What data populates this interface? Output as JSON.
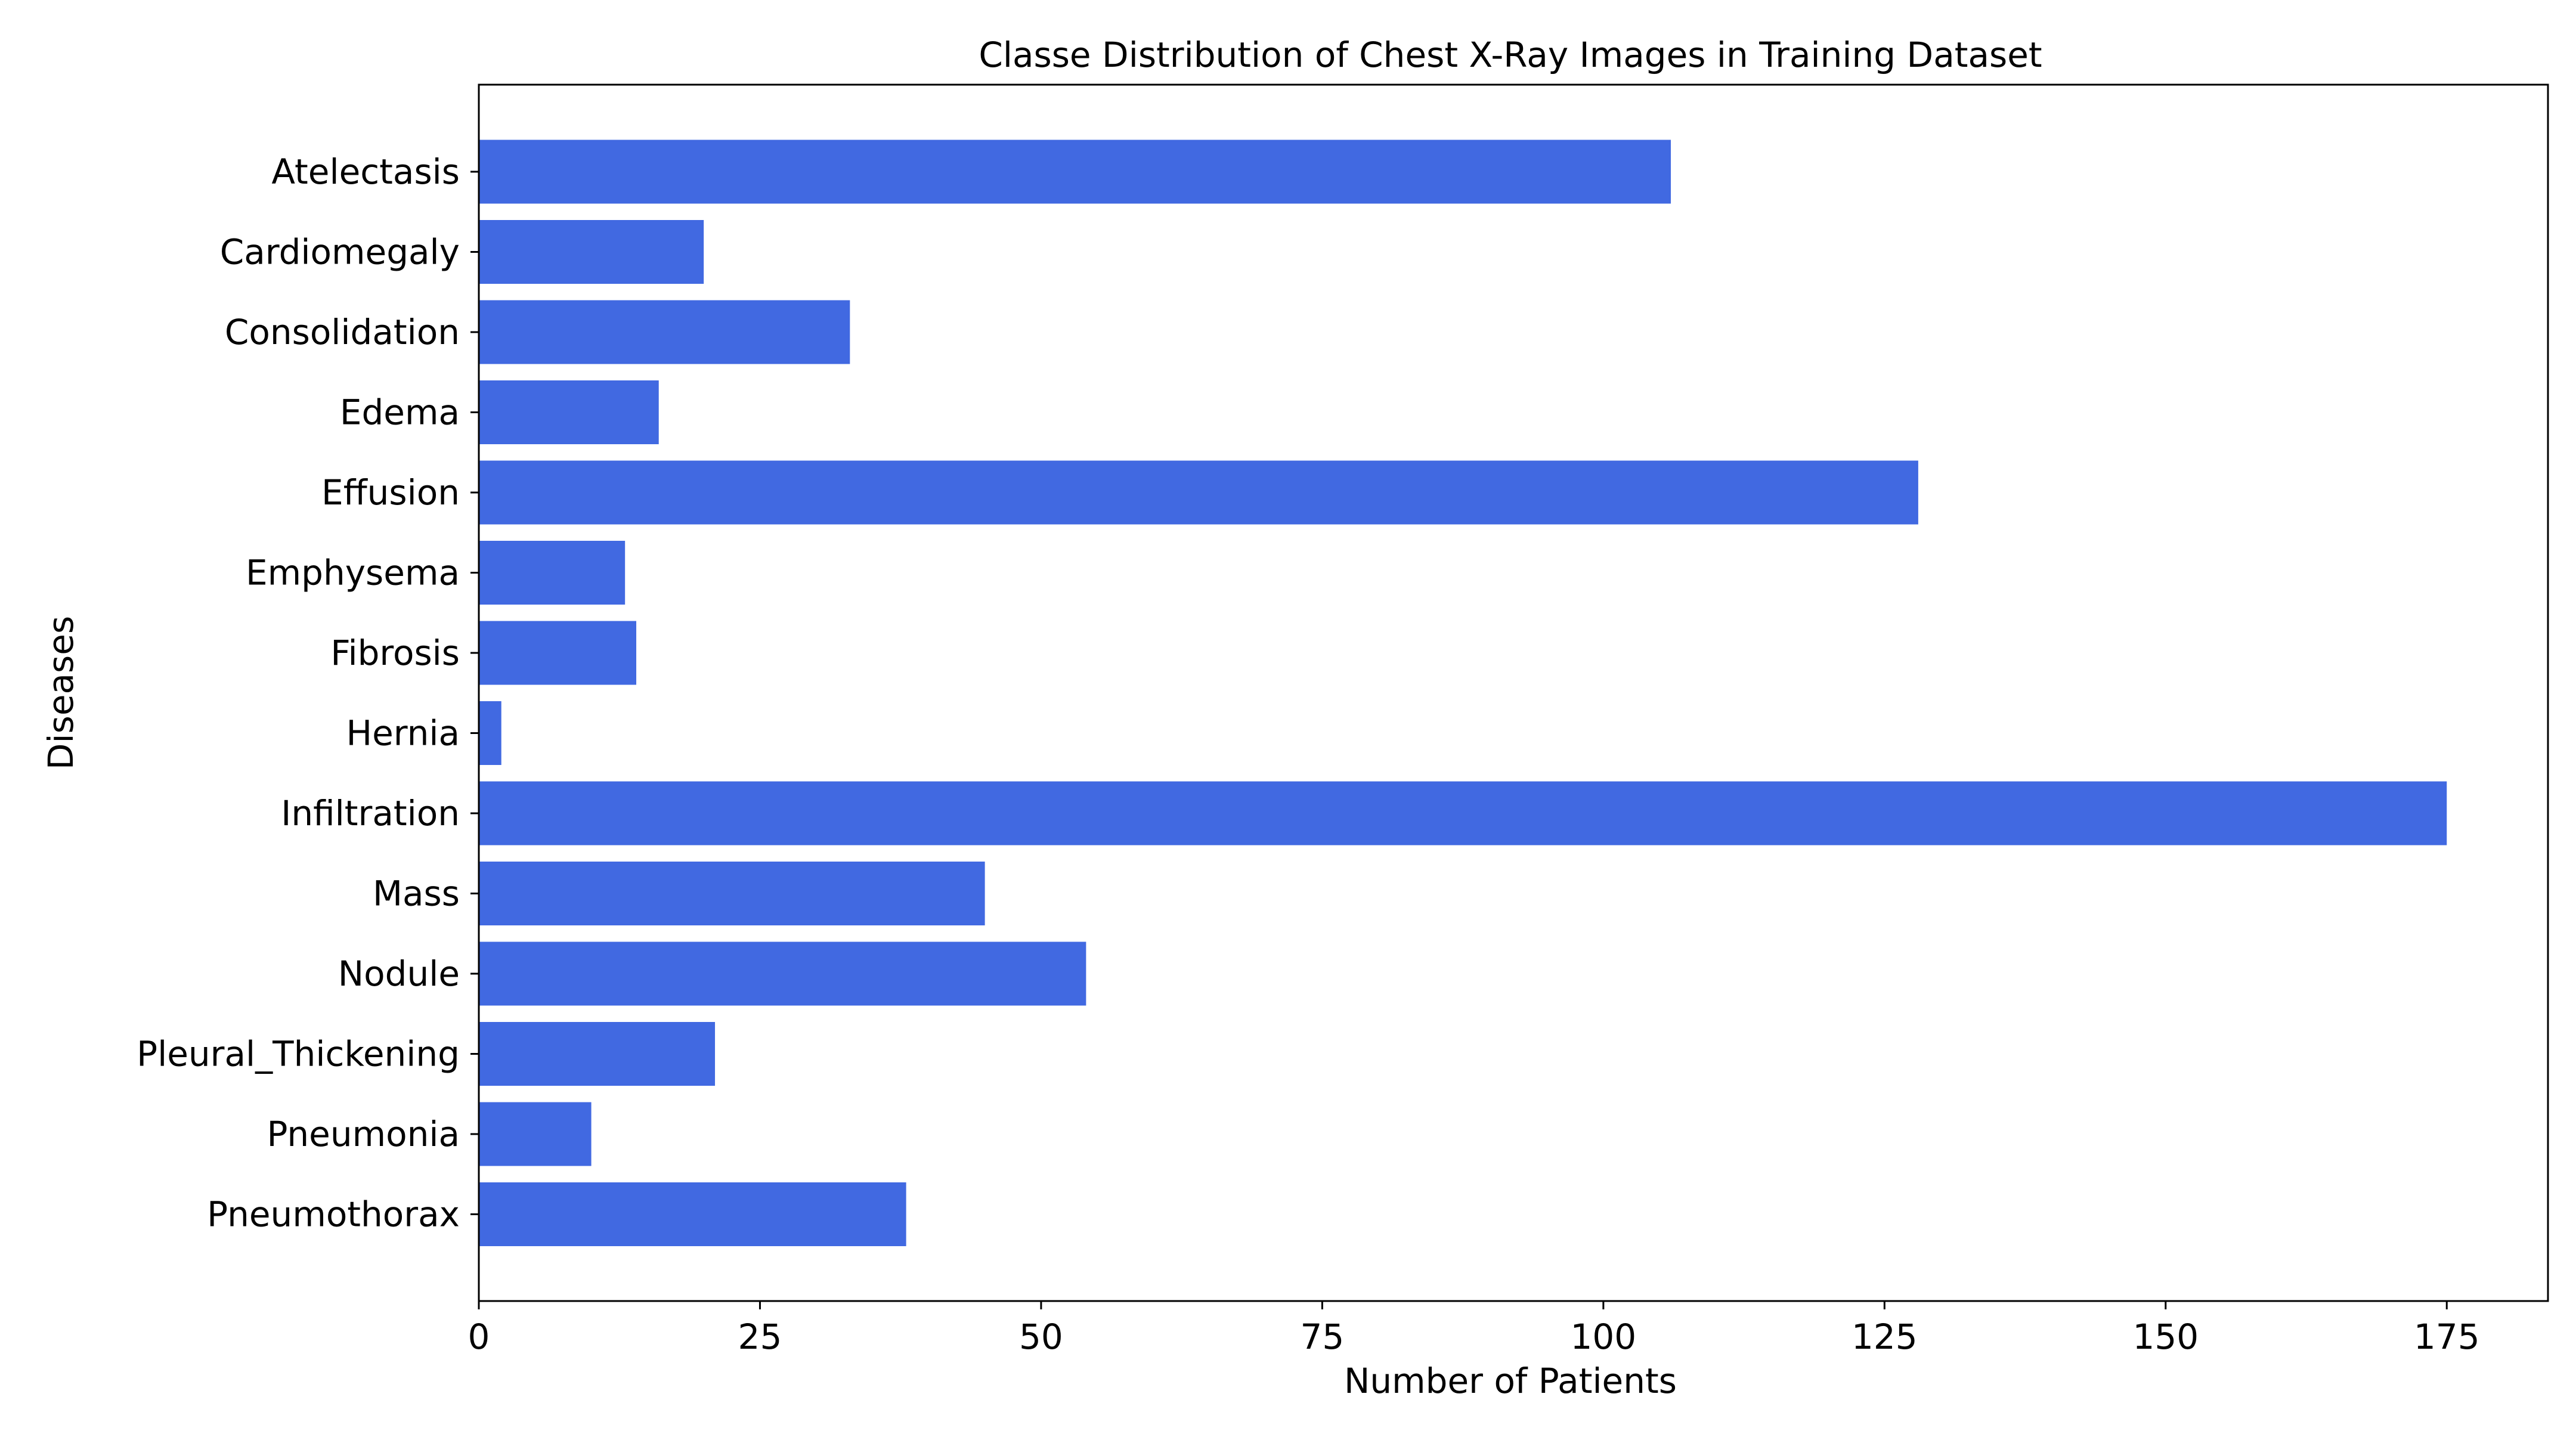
{
  "chart_data": {
    "type": "bar",
    "orientation": "horizontal",
    "title": "Classe Distribution of Chest X-Ray Images in Training Dataset",
    "xlabel": "Number of Patients",
    "ylabel": "Diseases",
    "categories": [
      "Atelectasis",
      "Cardiomegaly",
      "Consolidation",
      "Edema",
      "Effusion",
      "Emphysema",
      "Fibrosis",
      "Hernia",
      "Infiltration",
      "Mass",
      "Nodule",
      "Pleural_Thickening",
      "Pneumonia",
      "Pneumothorax"
    ],
    "values": [
      106,
      20,
      33,
      16,
      128,
      13,
      14,
      2,
      175,
      45,
      54,
      21,
      10,
      38
    ],
    "xlim": [
      0,
      184
    ],
    "xticks": [
      0,
      25,
      50,
      75,
      100,
      125,
      150,
      175
    ],
    "grid": false,
    "bar_color": "#4169e1"
  }
}
